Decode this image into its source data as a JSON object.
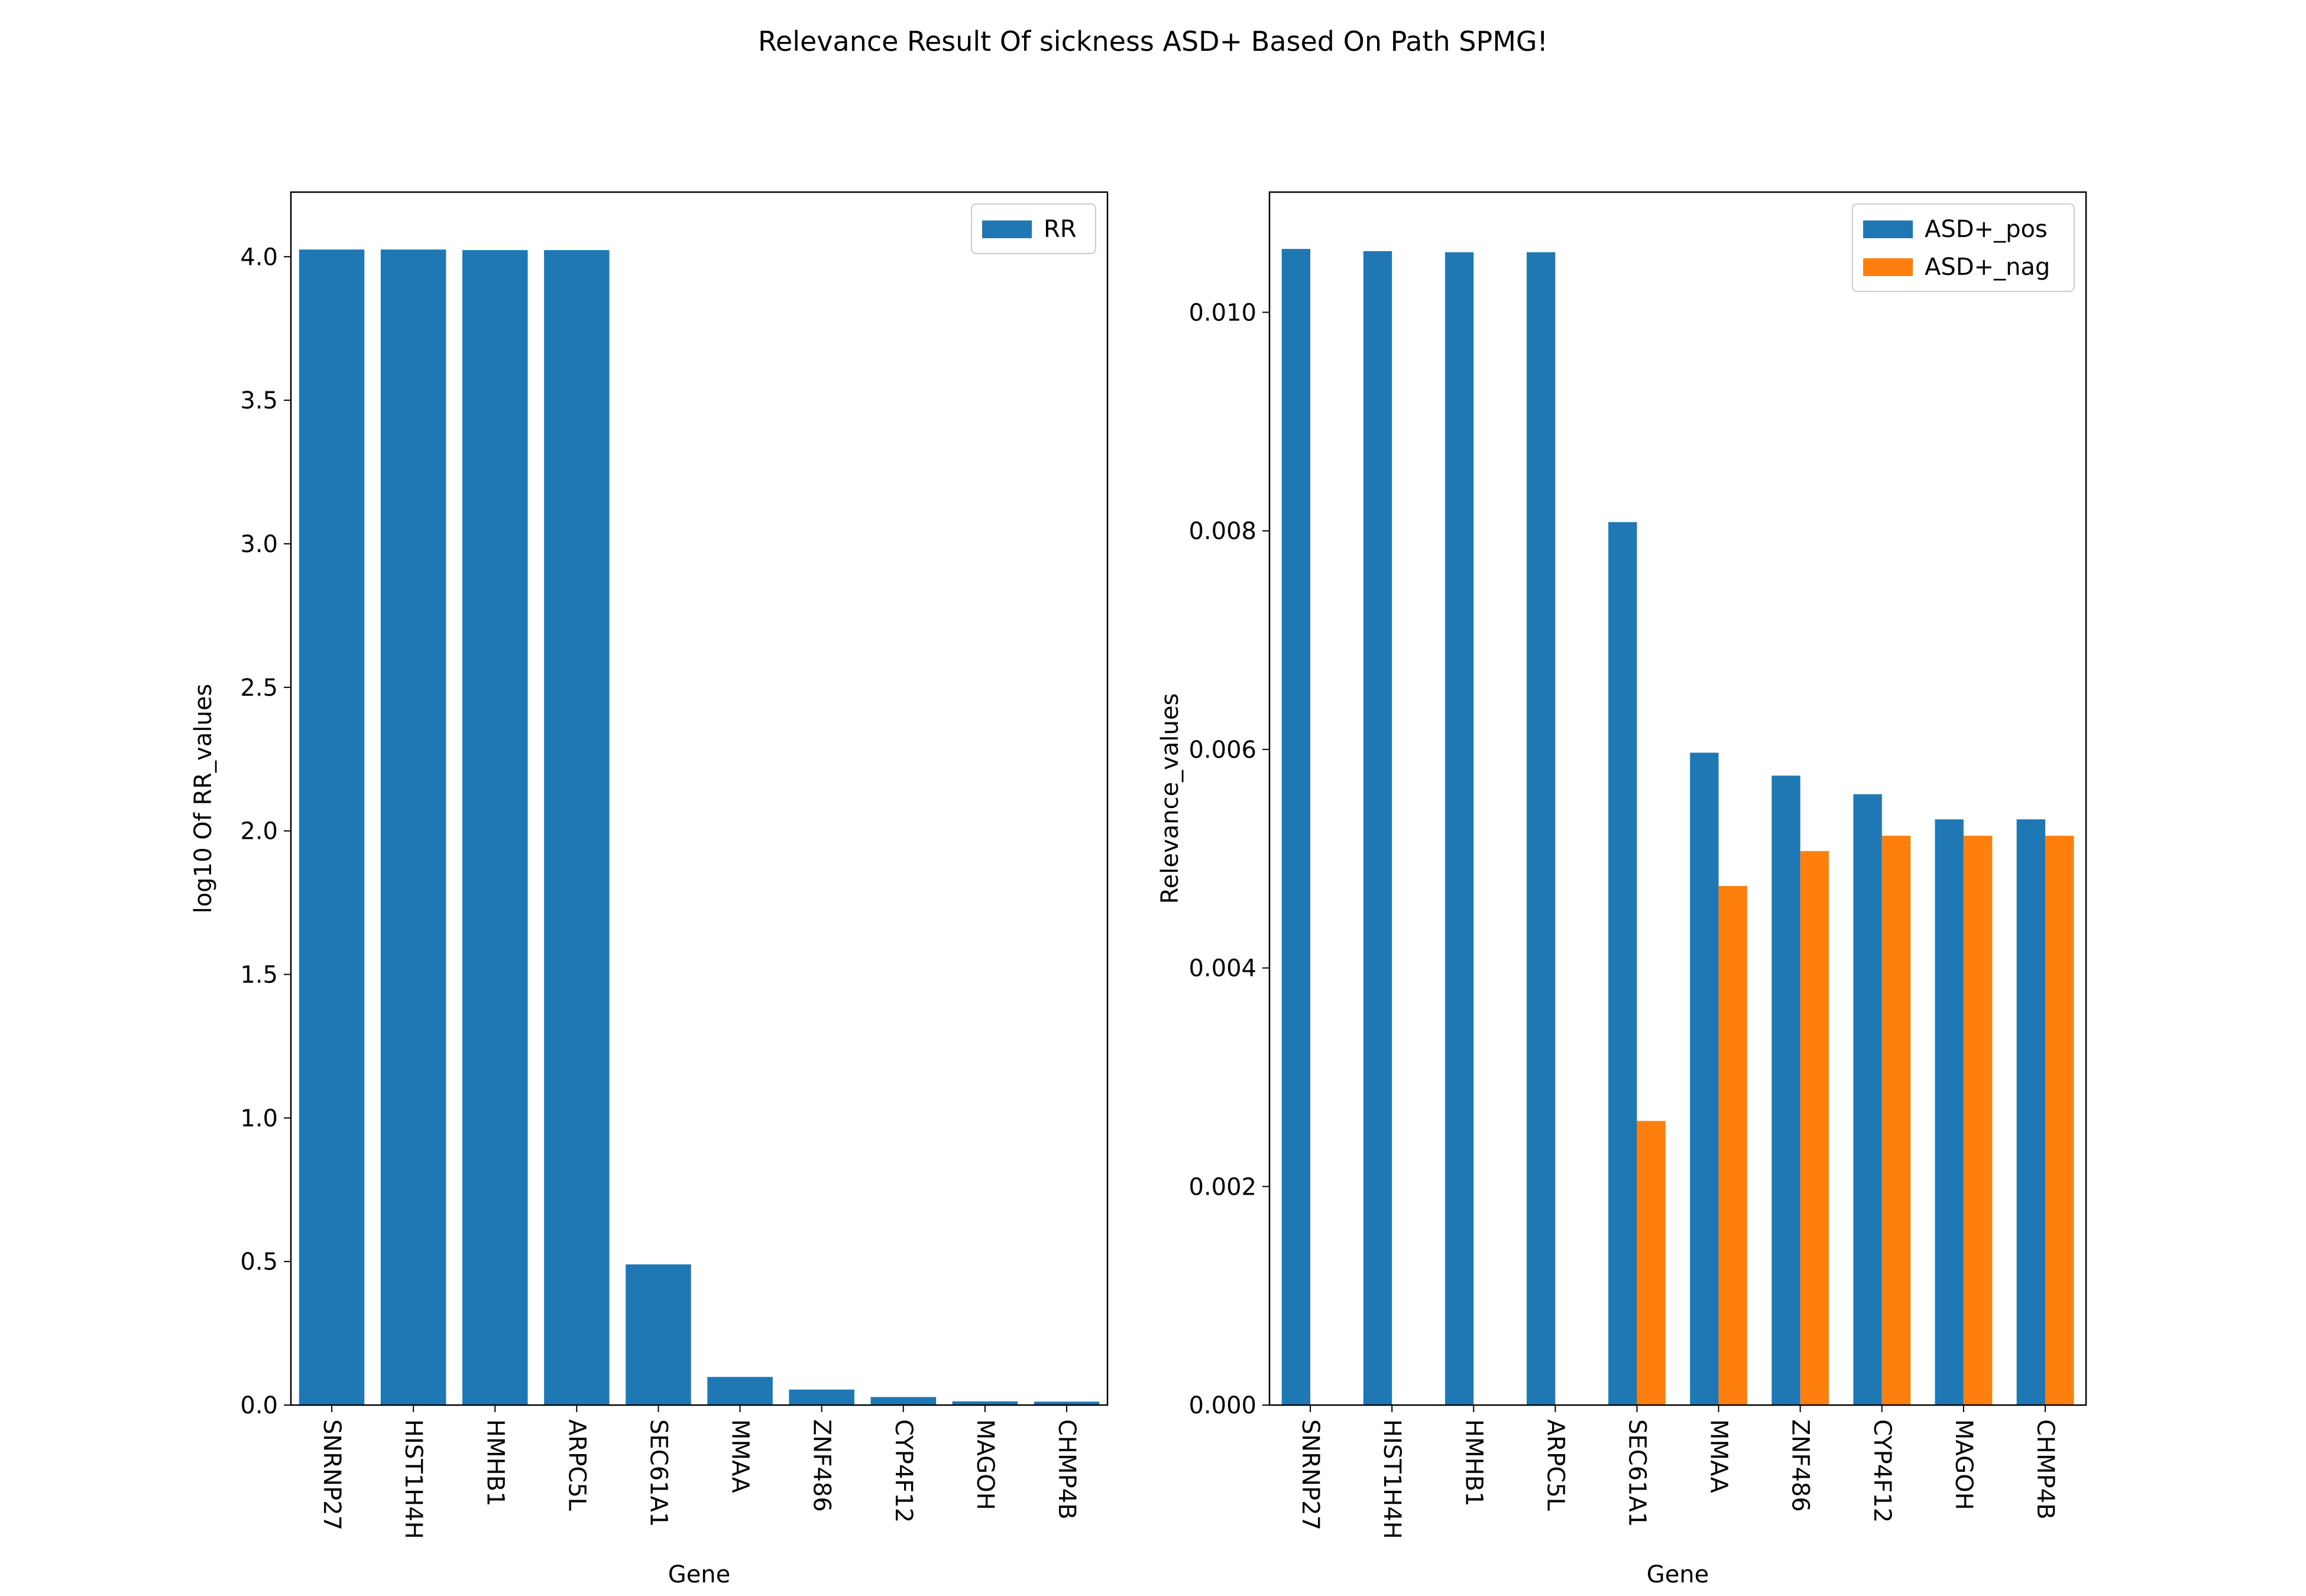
{
  "figure": {
    "title": "Relevance Result Of sickness ASD+ Based On Path SPMG!"
  },
  "chart_data": [
    {
      "type": "bar",
      "categories": [
        "SNRNP27",
        "HIST1H4H",
        "HMHB1",
        "ARPC5L",
        "SEC61A1",
        "MMAA",
        "ZNF486",
        "CYP4F12",
        "MAGOH",
        "CHMP4B"
      ],
      "series": [
        {
          "name": "RR",
          "color": "#1f77b4",
          "values": [
            4.025,
            4.025,
            4.023,
            4.023,
            0.49,
            0.098,
            0.054,
            0.028,
            0.013,
            0.012
          ]
        }
      ],
      "xlabel": "Gene",
      "ylabel": "log10 Of RR_values",
      "ylim": [
        0,
        4.225
      ],
      "yticks": [
        0.0,
        0.5,
        1.0,
        1.5,
        2.0,
        2.5,
        3.0,
        3.5,
        4.0
      ],
      "ytick_labels": [
        "0.0",
        "0.5",
        "1.0",
        "1.5",
        "2.0",
        "2.5",
        "3.0",
        "3.5",
        "4.0"
      ],
      "grid": false,
      "legend": "top-right"
    },
    {
      "type": "bar",
      "categories": [
        "SNRNP27",
        "HIST1H4H",
        "HMHB1",
        "ARPC5L",
        "SEC61A1",
        "MMAA",
        "ZNF486",
        "CYP4F12",
        "MAGOH",
        "CHMP4B"
      ],
      "series": [
        {
          "name": "ASD+_pos",
          "color": "#1f77b4",
          "values": [
            0.01058,
            0.01056,
            0.01055,
            0.01055,
            0.00808,
            0.00597,
            0.00576,
            0.00559,
            0.00536,
            0.00536
          ]
        },
        {
          "name": "ASD+_nag",
          "color": "#ff7f0e",
          "values": [
            0.0,
            0.0,
            0.0,
            0.0,
            0.0026,
            0.00475,
            0.00507,
            0.00521,
            0.00521,
            0.00521
          ]
        }
      ],
      "xlabel": "Gene",
      "ylabel": "Relevance_values",
      "ylim": [
        0,
        0.0111
      ],
      "yticks": [
        0.0,
        0.002,
        0.004,
        0.006,
        0.008,
        0.01
      ],
      "ytick_labels": [
        "0.000",
        "0.002",
        "0.004",
        "0.006",
        "0.008",
        "0.010"
      ],
      "grid": false,
      "legend": "top-right"
    }
  ]
}
